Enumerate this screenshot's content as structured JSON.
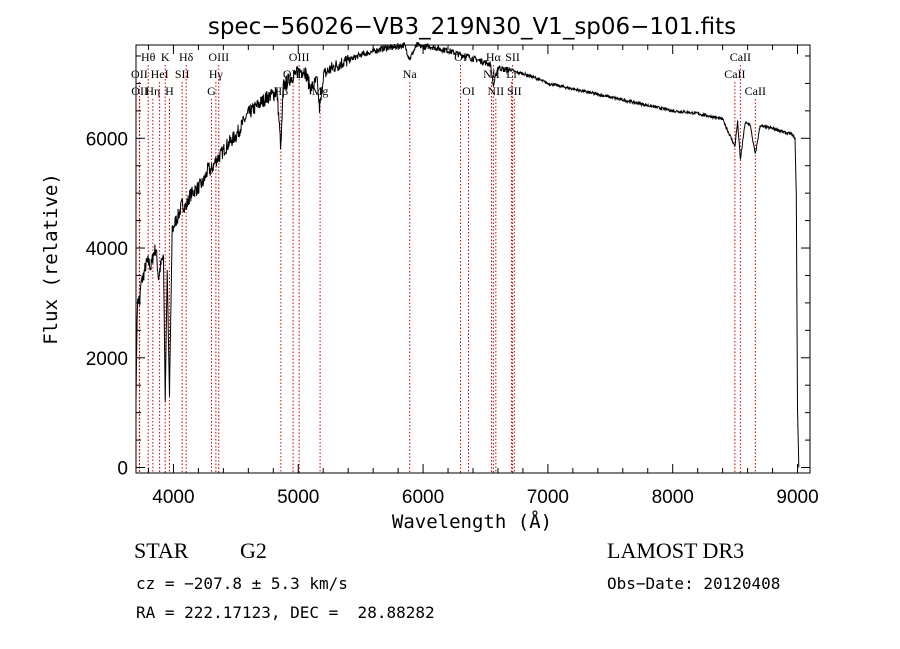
{
  "chart_data": {
    "type": "line",
    "title": "spec−56026−VB3_219N30_V1_sp06−101.fits",
    "xlabel": "Wavelength (Å)",
    "ylabel": "Flux (relative)",
    "xlim": [
      3700,
      9100
    ],
    "ylim": [
      -100,
      7700
    ],
    "xticks": [
      4000,
      5000,
      6000,
      7000,
      8000,
      9000
    ],
    "yticks": [
      0,
      2000,
      4000,
      6000
    ],
    "grid": false,
    "series": [
      {
        "name": "flux",
        "x": [
          3700,
          3710,
          3720,
          3730,
          3740,
          3760,
          3780,
          3800,
          3820,
          3840,
          3860,
          3880,
          3900,
          3920,
          3934,
          3950,
          3968,
          3990,
          4010,
          4040,
          4070,
          4102,
          4130,
          4170,
          4200,
          4240,
          4280,
          4300,
          4340,
          4380,
          4420,
          4460,
          4500,
          4550,
          4600,
          4650,
          4700,
          4750,
          4800,
          4830,
          4861,
          4880,
          4920,
          4960,
          5000,
          5050,
          5100,
          5150,
          5170,
          5183,
          5200,
          5250,
          5300,
          5350,
          5400,
          5450,
          5500,
          5550,
          5600,
          5650,
          5700,
          5750,
          5800,
          5850,
          5893,
          5950,
          6000,
          6050,
          6100,
          6150,
          6200,
          6250,
          6300,
          6350,
          6400,
          6450,
          6500,
          6540,
          6563,
          6600,
          6650,
          6700,
          6750,
          6800,
          6900,
          7000,
          7100,
          7200,
          7300,
          7400,
          7500,
          7600,
          7700,
          7800,
          7900,
          8000,
          8100,
          8200,
          8300,
          8400,
          8498,
          8520,
          8542,
          8580,
          8620,
          8662,
          8700,
          8750,
          8800,
          8850,
          8900,
          8950,
          8980,
          8990,
          9000,
          9010
        ],
        "y": [
          1200,
          2900,
          3100,
          3000,
          3350,
          3500,
          3700,
          3750,
          3650,
          3900,
          4000,
          3450,
          3700,
          3850,
          1200,
          3600,
          1300,
          4300,
          4450,
          4600,
          4800,
          4750,
          4950,
          5050,
          5100,
          5200,
          5450,
          5400,
          5600,
          5700,
          5850,
          5950,
          6050,
          6250,
          6450,
          6550,
          6650,
          6750,
          6800,
          6850,
          5800,
          6950,
          7050,
          7150,
          7200,
          7250,
          6900,
          7050,
          6550,
          6700,
          7150,
          7250,
          7320,
          7380,
          7420,
          7470,
          7520,
          7550,
          7580,
          7620,
          7650,
          7650,
          7680,
          7700,
          7450,
          7700,
          7660,
          7680,
          7650,
          7620,
          7600,
          7560,
          7520,
          7500,
          7450,
          7420,
          7380,
          7350,
          6950,
          7300,
          7250,
          7250,
          7200,
          7180,
          7100,
          7000,
          6950,
          6900,
          6850,
          6800,
          6750,
          6700,
          6650,
          6600,
          6550,
          6500,
          6480,
          6450,
          6400,
          6350,
          5850,
          6300,
          5600,
          6280,
          6250,
          5700,
          6230,
          6200,
          6180,
          6150,
          6100,
          6080,
          6000,
          4950,
          1100,
          0
        ]
      }
    ],
    "spectral_lines": [
      {
        "label": "Hθ",
        "x": 3798,
        "row": 1
      },
      {
        "label": "OII",
        "x": 3727,
        "row": 2
      },
      {
        "label": "OII",
        "x": 3729,
        "row": 3
      },
      {
        "label": "Hη",
        "x": 3835,
        "row": 3
      },
      {
        "label": "K",
        "x": 3934,
        "row": 1
      },
      {
        "label": "HeI",
        "x": 3889,
        "row": 2
      },
      {
        "label": "H",
        "x": 3968,
        "row": 3
      },
      {
        "label": "SII",
        "x": 4070,
        "row": 2
      },
      {
        "label": "Hδ",
        "x": 4102,
        "row": 1
      },
      {
        "label": "OIII",
        "x": 4363,
        "row": 1
      },
      {
        "label": "Hγ",
        "x": 4340,
        "row": 2
      },
      {
        "label": "G",
        "x": 4305,
        "row": 3
      },
      {
        "label": "Hβ",
        "x": 4861,
        "row": 3
      },
      {
        "label": "OIII",
        "x": 5007,
        "row": 1
      },
      {
        "label": "OIII",
        "x": 4959,
        "row": 2
      },
      {
        "label": "Mg",
        "x": 5175,
        "row": 3
      },
      {
        "label": "Na",
        "x": 5893,
        "row": 2
      },
      {
        "label": "OI",
        "x": 6300,
        "row": 1
      },
      {
        "label": "OI",
        "x": 6364,
        "row": 3
      },
      {
        "label": "Hα",
        "x": 6563,
        "row": 1
      },
      {
        "label": "NII",
        "x": 6548,
        "row": 2
      },
      {
        "label": "NII",
        "x": 6583,
        "row": 3
      },
      {
        "label": "SII",
        "x": 6717,
        "row": 1
      },
      {
        "label": "Li",
        "x": 6708,
        "row": 2
      },
      {
        "label": "SII",
        "x": 6731,
        "row": 3
      },
      {
        "label": "CaII",
        "x": 8542,
        "row": 1
      },
      {
        "label": "CaII",
        "x": 8498,
        "row": 2
      },
      {
        "label": "CaII",
        "x": 8662,
        "row": 3
      }
    ]
  },
  "info": {
    "object_class": "STAR",
    "subclass": "G2",
    "survey": "LAMOST DR3",
    "redshift": "cz = −207.8 ± 5.3 km/s",
    "obs_date": "Obs−Date: 20120408",
    "coords": "RA = 222.17123, DEC =  28.88282"
  }
}
